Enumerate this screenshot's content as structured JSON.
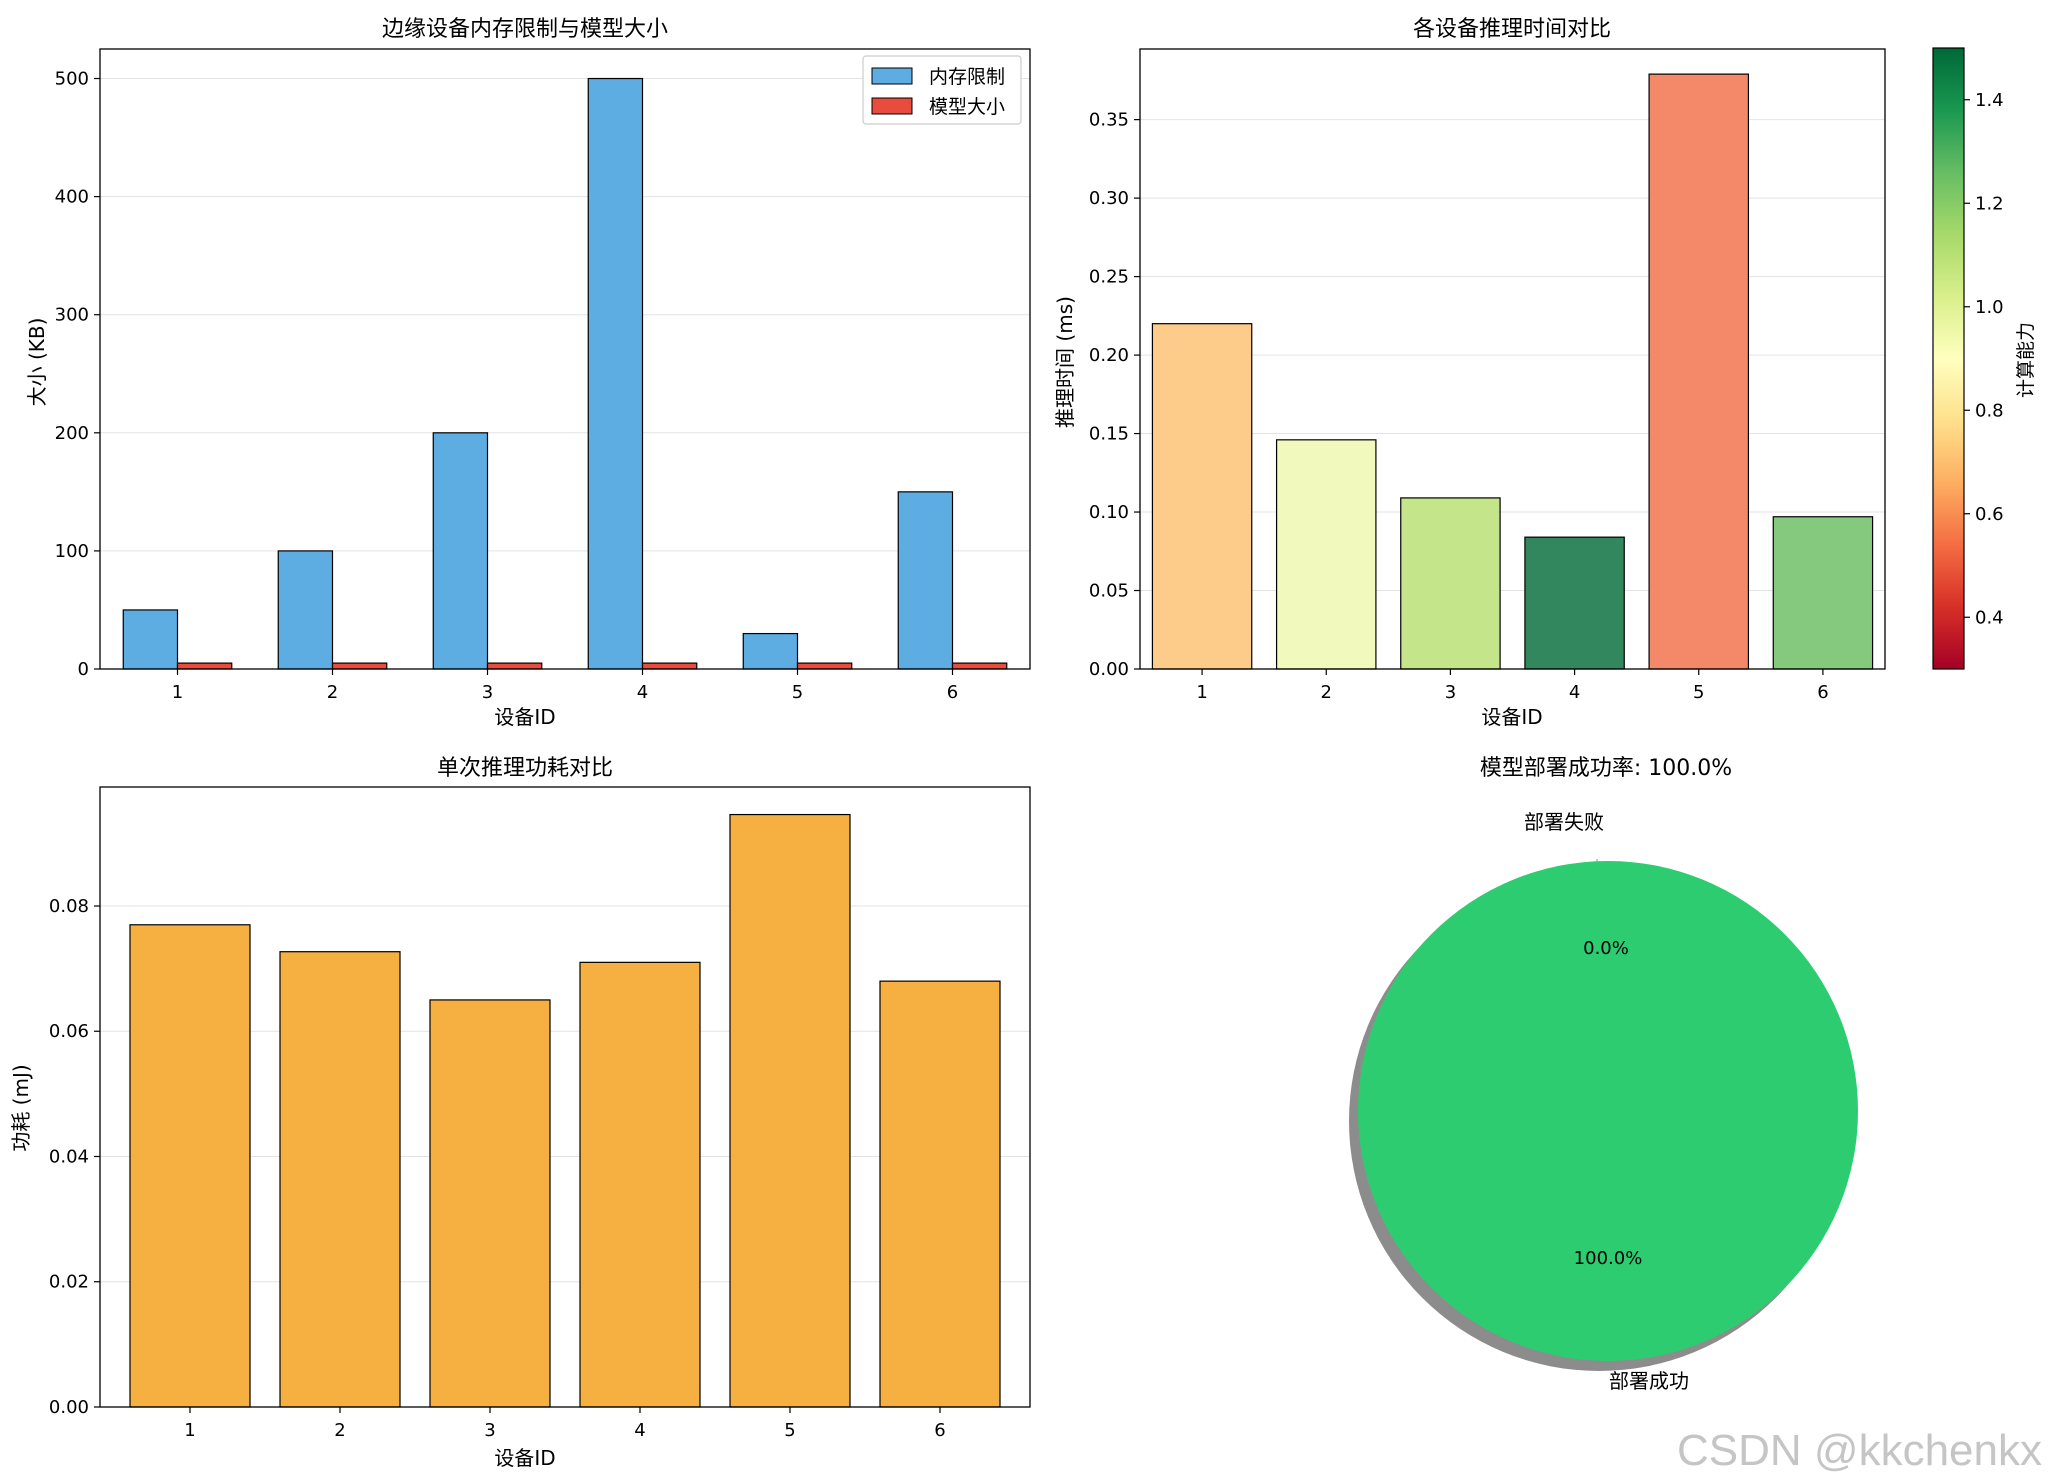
{
  "chart_data": [
    {
      "type": "bar",
      "title": "边缘设备内存限制与模型大小",
      "xlabel": "设备ID",
      "ylabel": "大小 (KB)",
      "categories": [
        "1",
        "2",
        "3",
        "4",
        "5",
        "6"
      ],
      "ylim": [
        0,
        525
      ],
      "yticks": [
        "0",
        "100",
        "200",
        "300",
        "400",
        "500"
      ],
      "grid": "y",
      "legend": "top-right",
      "series": [
        {
          "name": "内存限制",
          "values": [
            50,
            100,
            200,
            500,
            30,
            150
          ],
          "color": "#5dade2"
        },
        {
          "name": "模型大小",
          "values": [
            5,
            5,
            5,
            5,
            5,
            5
          ],
          "color": "#e74c3c"
        }
      ]
    },
    {
      "type": "bar",
      "title": "各设备推理时间对比",
      "xlabel": "设备ID",
      "ylabel": "推理时间 (ms)",
      "categories": [
        "1",
        "2",
        "3",
        "4",
        "5",
        "6"
      ],
      "values": [
        0.22,
        0.146,
        0.109,
        0.084,
        0.379,
        0.097
      ],
      "compute_power": [
        0.7,
        0.9,
        1.1,
        1.5,
        0.6,
        1.3
      ],
      "colors": [
        "#fdcc8a",
        "#f1f9bd",
        "#c4e58a",
        "#33875f",
        "#f4896a",
        "#84c97e"
      ],
      "ylim": [
        0,
        0.395
      ],
      "yticks": [
        "0.00",
        "0.05",
        "0.10",
        "0.15",
        "0.20",
        "0.25",
        "0.30",
        "0.35"
      ],
      "grid": "y",
      "colorbar": {
        "label": "计算能力",
        "range": [
          0.3,
          1.5
        ],
        "ticks": [
          "0.4",
          "0.6",
          "0.8",
          "1.0",
          "1.2",
          "1.4"
        ],
        "colors": [
          "#a50026",
          "#d73027",
          "#f46d43",
          "#fdae61",
          "#fee08b",
          "#ffffbf",
          "#d9ef8b",
          "#a6d96a",
          "#66bd63",
          "#1a9850",
          "#006837"
        ]
      }
    },
    {
      "type": "bar",
      "title": "单次推理功耗对比",
      "xlabel": "设备ID",
      "ylabel": "功耗 (mJ)",
      "categories": [
        "1",
        "2",
        "3",
        "4",
        "5",
        "6"
      ],
      "values": [
        0.077,
        0.0727,
        0.065,
        0.071,
        0.0946,
        0.068
      ],
      "color": "#f5b041",
      "ylim": [
        0,
        0.099
      ],
      "yticks": [
        "0.00",
        "0.02",
        "0.04",
        "0.06",
        "0.08"
      ],
      "grid": "y"
    },
    {
      "type": "pie",
      "title": "模型部署成功率: 100.0%",
      "labels": [
        "部署成功",
        "部署失败"
      ],
      "values": [
        100.0,
        0.0
      ],
      "pct_labels": [
        "100.0%",
        "0.0%"
      ],
      "colors": [
        "#2ecc71",
        "#e74c3c"
      ],
      "shadow": true
    }
  ],
  "watermark": "CSDN @kkchenkx"
}
